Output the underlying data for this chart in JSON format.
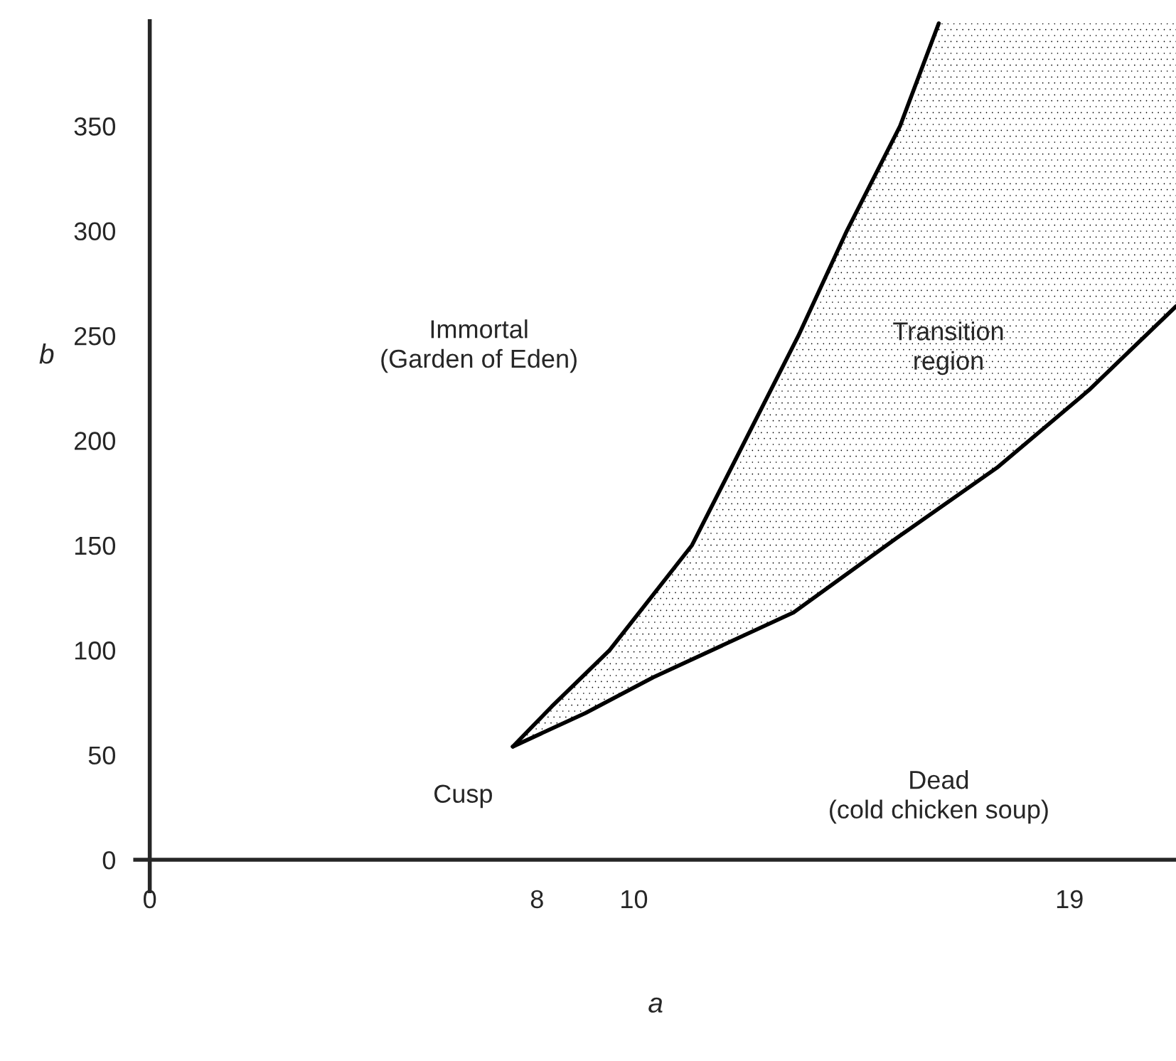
{
  "chart_data": {
    "type": "line",
    "xlabel": "a",
    "ylabel": "b",
    "series": [
      {
        "color": "#000000",
        "x": [
          7.5,
          8.3,
          9.5,
          11.2,
          12.3,
          13.4,
          14.4,
          15.5,
          16.3
        ],
        "values": [
          54,
          73,
          100,
          150,
          200,
          250,
          300,
          350,
          399
        ]
      },
      {
        "color": "#000000",
        "x": [
          7.5,
          9.0,
          10.4,
          13.3,
          15.4,
          17.5,
          19.4,
          21.2
        ],
        "values": [
          54,
          70,
          87,
          118,
          153,
          187,
          224,
          264
        ]
      }
    ],
    "annotations": [
      "Immortal\n(Garden of Eden)",
      "Transition\nregion",
      "Dead\n(cold chicken soup)",
      {
        "text": "Cusp",
        "x": 7.5,
        "y": 54
      }
    ],
    "xlim": [
      -0.3,
      21.2
    ],
    "ylim": [
      -15,
      400
    ],
    "xticks": [
      0,
      8,
      10,
      19
    ],
    "yticks": [
      0,
      50,
      100,
      150,
      200,
      250,
      300,
      350
    ],
    "grid": false,
    "legend": false,
    "marker": "none",
    "line_style": "solid"
  }
}
